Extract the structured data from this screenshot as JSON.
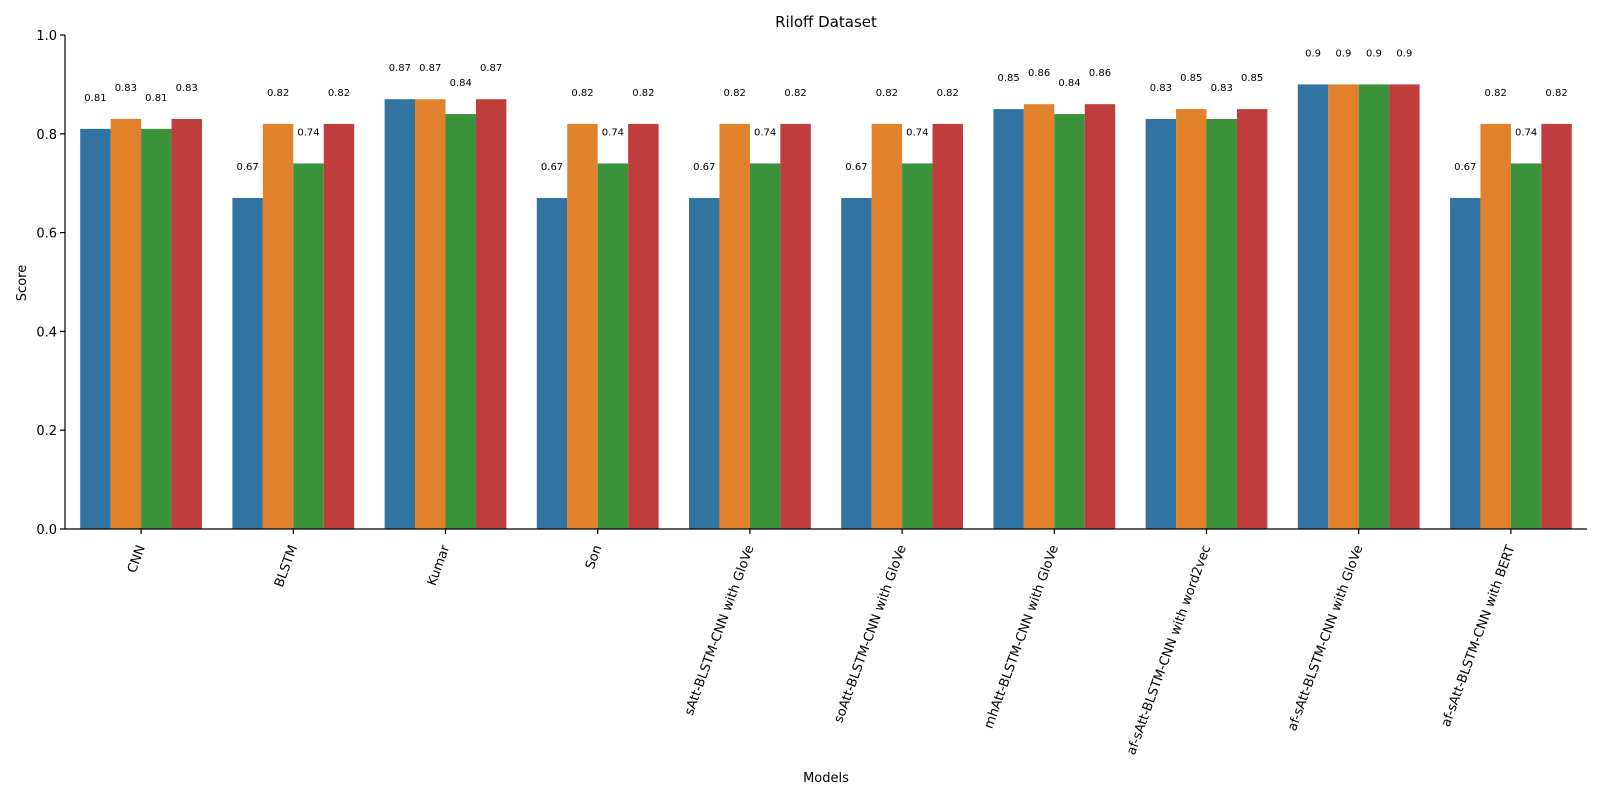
{
  "chart_data": {
    "type": "bar",
    "title": "Riloff Dataset",
    "xlabel": "Models",
    "ylabel": "Score",
    "ylim": [
      0,
      1.0
    ],
    "yticks": [
      "0.0",
      "0.2",
      "0.4",
      "0.6",
      "0.8",
      "1.0"
    ],
    "grid": false,
    "legend": false,
    "categories": [
      "CNN",
      "BLSTM",
      "Kumar",
      "Son",
      "sAtt-BLSTM-CNN with GloVe",
      "soAtt-BLSTM-CNN with GloVe",
      "mhAtt-BLSTM-CNN with GloVe",
      "af-sAtt-BLSTM-CNN with word2vec",
      "af-sAtt-BLSTM-CNN with GloVe",
      "af-sAtt-BLSTM-CNN with BERT"
    ],
    "series": [
      {
        "color": "#3274a1",
        "values": [
          0.81,
          0.67,
          0.87,
          0.67,
          0.67,
          0.67,
          0.85,
          0.83,
          0.9,
          0.67
        ]
      },
      {
        "color": "#e1812c",
        "values": [
          0.83,
          0.82,
          0.87,
          0.82,
          0.82,
          0.82,
          0.86,
          0.85,
          0.9,
          0.82
        ]
      },
      {
        "color": "#3a923a",
        "values": [
          0.81,
          0.74,
          0.84,
          0.74,
          0.74,
          0.74,
          0.84,
          0.83,
          0.9,
          0.74
        ]
      },
      {
        "color": "#c03d3e",
        "values": [
          0.83,
          0.82,
          0.87,
          0.82,
          0.82,
          0.82,
          0.86,
          0.85,
          0.9,
          0.82
        ]
      }
    ]
  }
}
